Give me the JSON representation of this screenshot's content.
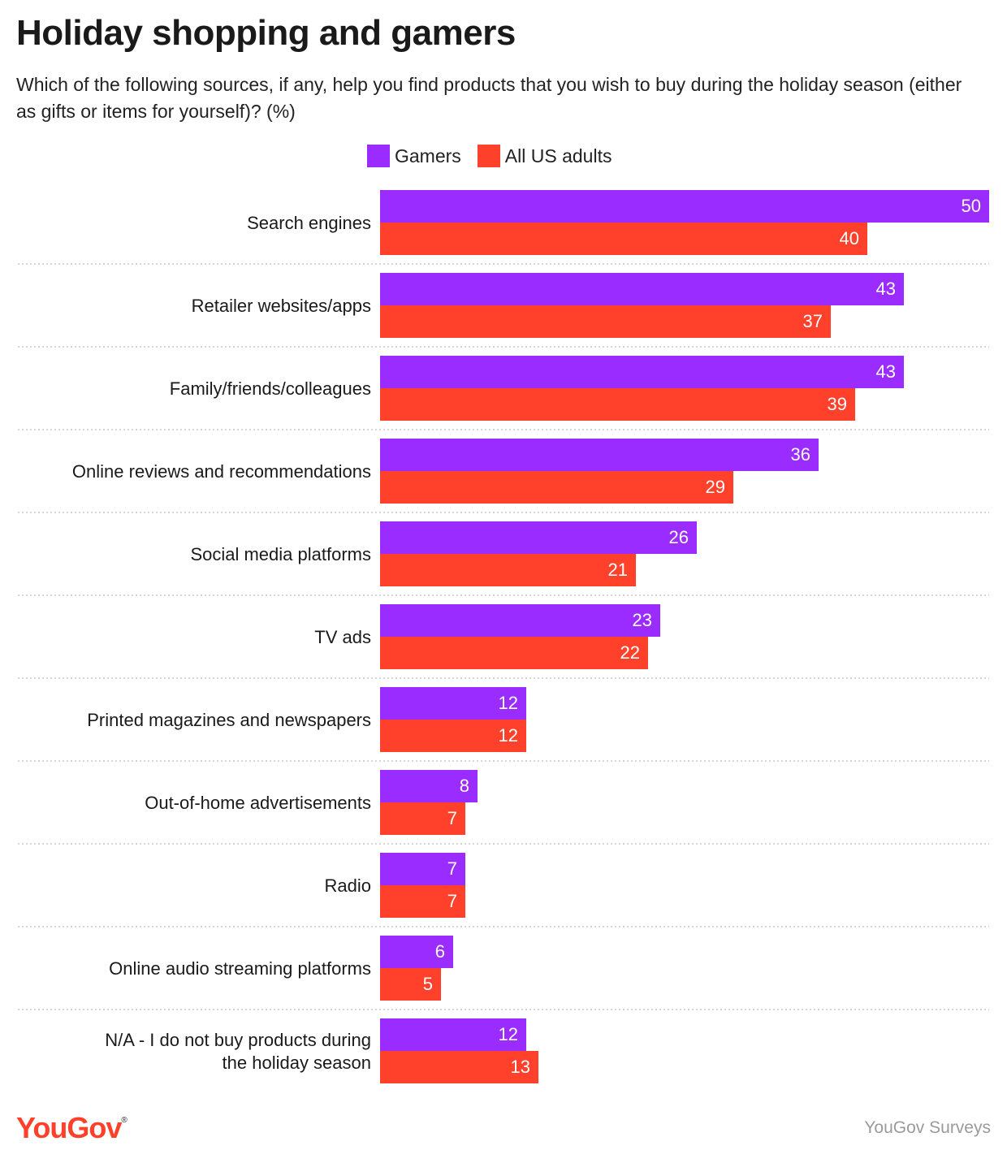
{
  "title": "Holiday shopping and gamers",
  "subtitle": "Which of the following sources, if any, help you find products that you wish to buy during the holiday season (either as gifts or items for yourself)? (%)",
  "legend": {
    "series1": "Gamers",
    "series2": "All US adults"
  },
  "colors": {
    "gamers": "#9b2cff",
    "all_us_adults": "#ff412c",
    "brand": "#ff412c"
  },
  "footer": {
    "logo": "YouGov",
    "source": "YouGov Surveys"
  },
  "chart_data": {
    "type": "bar",
    "orientation": "horizontal",
    "categories": [
      "Search engines",
      "Retailer websites/apps",
      "Family/friends/colleagues",
      "Online reviews and recommendations",
      "Social media platforms",
      "TV ads",
      "Printed magazines and newspapers",
      "Out-of-home advertisements",
      "Radio",
      "Online audio streaming platforms",
      "N/A - I do not buy products during the holiday season"
    ],
    "series": [
      {
        "name": "Gamers",
        "values": [
          50,
          43,
          43,
          36,
          26,
          23,
          12,
          8,
          7,
          6,
          12
        ]
      },
      {
        "name": "All US adults",
        "values": [
          40,
          37,
          39,
          29,
          21,
          22,
          12,
          7,
          7,
          5,
          13
        ]
      }
    ],
    "xlim": [
      0,
      50
    ],
    "grid": false,
    "legend_position": "top",
    "data_labels": true
  }
}
